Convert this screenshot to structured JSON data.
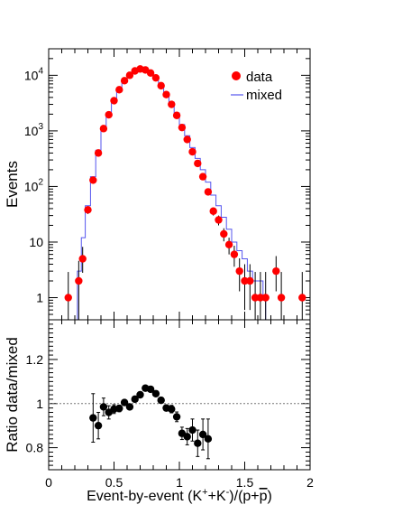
{
  "chart_data": [
    {
      "type": "scatter",
      "ylabel": "Events",
      "yscale": "log",
      "xlim": [
        0,
        2
      ],
      "ylim": [
        0.4,
        30000
      ],
      "x_ticks": [
        0,
        0.5,
        1,
        1.5,
        2
      ],
      "y_ticks": [
        {
          "value": 1,
          "label": "1",
          "base": "",
          "exp": ""
        },
        {
          "value": 10,
          "label": "10",
          "base": "",
          "exp": ""
        },
        {
          "value": 100,
          "label": "",
          "base": "10",
          "exp": "2"
        },
        {
          "value": 1000,
          "label": "",
          "base": "10",
          "exp": "3"
        },
        {
          "value": 10000,
          "label": "",
          "base": "10",
          "exp": "4"
        }
      ],
      "legend": {
        "position": "top-right",
        "entries": [
          "data",
          "mixed"
        ]
      },
      "colors": {
        "data": "#ff0000",
        "mixed": "#5555ee"
      },
      "series": [
        {
          "name": "data",
          "x": [
            0.15,
            0.23,
            0.26,
            0.3,
            0.34,
            0.38,
            0.42,
            0.46,
            0.5,
            0.54,
            0.58,
            0.62,
            0.66,
            0.7,
            0.74,
            0.78,
            0.82,
            0.86,
            0.9,
            0.94,
            0.98,
            1.02,
            1.06,
            1.1,
            1.14,
            1.18,
            1.22,
            1.26,
            1.3,
            1.34,
            1.38,
            1.42,
            1.46,
            1.5,
            1.54,
            1.58,
            1.62,
            1.66,
            1.74,
            1.78,
            1.94
          ],
          "y": [
            1,
            2,
            5,
            38,
            130,
            400,
            1100,
            1950,
            3500,
            5500,
            8000,
            10000,
            12000,
            13000,
            12500,
            11000,
            9000,
            6500,
            4500,
            3000,
            1900,
            1150,
            700,
            420,
            260,
            150,
            80,
            36,
            25,
            14,
            9,
            6,
            3,
            2,
            2,
            1,
            1,
            1,
            3,
            1,
            1
          ],
          "yerr_low": [
            0.85,
            1.6,
            2.2,
            6,
            11,
            20,
            33,
            44,
            59,
            74,
            89,
            100,
            110,
            114,
            112,
            105,
            95,
            81,
            67,
            55,
            44,
            34,
            26,
            20,
            16,
            12,
            9,
            6,
            5,
            3.7,
            3,
            2.4,
            1.7,
            1.4,
            1.4,
            0.85,
            0.85,
            0.85,
            1.7,
            0.85,
            0.85
          ],
          "yerr_high": [
            1.9,
            2.6,
            3.2,
            6,
            11,
            20,
            33,
            44,
            59,
            74,
            89,
            100,
            110,
            114,
            112,
            105,
            95,
            81,
            67,
            55,
            44,
            34,
            26,
            20,
            16,
            12,
            9,
            6,
            5,
            3.7,
            3,
            2.6,
            2.1,
            2.0,
            2.0,
            1.9,
            1.9,
            1.9,
            2.6,
            1.9,
            1.9
          ]
        },
        {
          "name": "mixed",
          "kind": "step",
          "bin_edges": [
            0.22,
            0.25,
            0.28,
            0.32,
            0.36,
            0.4,
            0.44,
            0.48,
            0.52,
            0.56,
            0.6,
            0.64,
            0.68,
            0.72,
            0.76,
            0.8,
            0.84,
            0.88,
            0.92,
            0.96,
            1.0,
            1.04,
            1.08,
            1.12,
            1.16,
            1.2,
            1.24,
            1.28,
            1.32,
            1.36,
            1.4,
            1.44,
            1.48,
            1.52,
            1.56,
            1.6,
            1.64,
            1.66
          ],
          "values": [
            3,
            12,
            45,
            150,
            450,
            1200,
            2100,
            3700,
            5800,
            8300,
            10500,
            12200,
            13000,
            12500,
            11200,
            9300,
            7000,
            4900,
            3300,
            2100,
            1300,
            820,
            500,
            320,
            200,
            120,
            70,
            45,
            28,
            17,
            10,
            7,
            5,
            3,
            2,
            2,
            1
          ]
        }
      ]
    },
    {
      "type": "scatter",
      "xlabel": "Event-by-event (K",
      "xlabel_sup1": "+",
      "xlabel_mid": "+K",
      "xlabel_sup2": "-",
      "xlabel_end": ")/(p+",
      "xlabel_pbar": "p",
      "xlabel_close": ")",
      "ylabel": "Ratio data/mixed",
      "xlim": [
        0,
        2
      ],
      "ylim": [
        0.7,
        1.38
      ],
      "x_ticks": [
        0,
        0.5,
        1,
        1.5,
        2
      ],
      "x_tick_labels": [
        "0",
        "0.5",
        "1",
        "1.5",
        "2"
      ],
      "y_ticks": [
        0.8,
        1,
        1.2
      ],
      "y_tick_labels": [
        "0.8",
        "1",
        "1.2"
      ],
      "reference_line": 1,
      "series": [
        {
          "name": "",
          "x": [
            0.34,
            0.38,
            0.42,
            0.46,
            0.5,
            0.54,
            0.58,
            0.62,
            0.66,
            0.7,
            0.74,
            0.78,
            0.82,
            0.86,
            0.9,
            0.94,
            0.98,
            1.02,
            1.06,
            1.1,
            1.14,
            1.18,
            1.22
          ],
          "y": [
            0.935,
            0.9,
            0.985,
            0.96,
            0.975,
            0.978,
            1.005,
            0.985,
            1.02,
            1.04,
            1.07,
            1.065,
            1.045,
            1.015,
            0.98,
            0.975,
            0.94,
            0.865,
            0.85,
            0.88,
            0.82,
            0.86,
            0.84
          ],
          "yerr": [
            0.11,
            0.06,
            0.04,
            0.03,
            0.02,
            0.015,
            0.012,
            0.01,
            0.01,
            0.01,
            0.01,
            0.01,
            0.01,
            0.012,
            0.014,
            0.017,
            0.022,
            0.028,
            0.037,
            0.05,
            0.06,
            0.07,
            0.09
          ]
        }
      ]
    }
  ]
}
